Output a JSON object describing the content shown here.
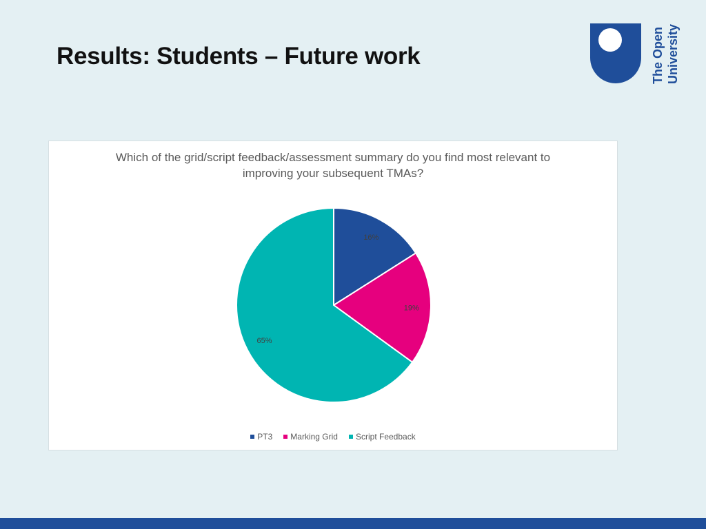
{
  "slide": {
    "title": "Results: Students – Future work"
  },
  "logo": {
    "line1": "The Open",
    "line2": "University"
  },
  "colors": {
    "background": "#e4f0f3",
    "logo_blue": "#1f4e9a",
    "bottom_bar": "#1f4e9a"
  },
  "chart_data": {
    "type": "pie",
    "title": "Which of the grid/script feedback/assessment summary do you find most relevant to improving your subsequent TMAs?",
    "labels": [
      "PT3",
      "Marking Grid",
      "Script Feedback"
    ],
    "values": [
      16,
      19,
      65
    ],
    "data_labels": [
      "16%",
      "19%",
      "65%"
    ],
    "colors": [
      "#1f4e9a",
      "#e6007e",
      "#00b5b2"
    ],
    "legend_position": "bottom"
  }
}
